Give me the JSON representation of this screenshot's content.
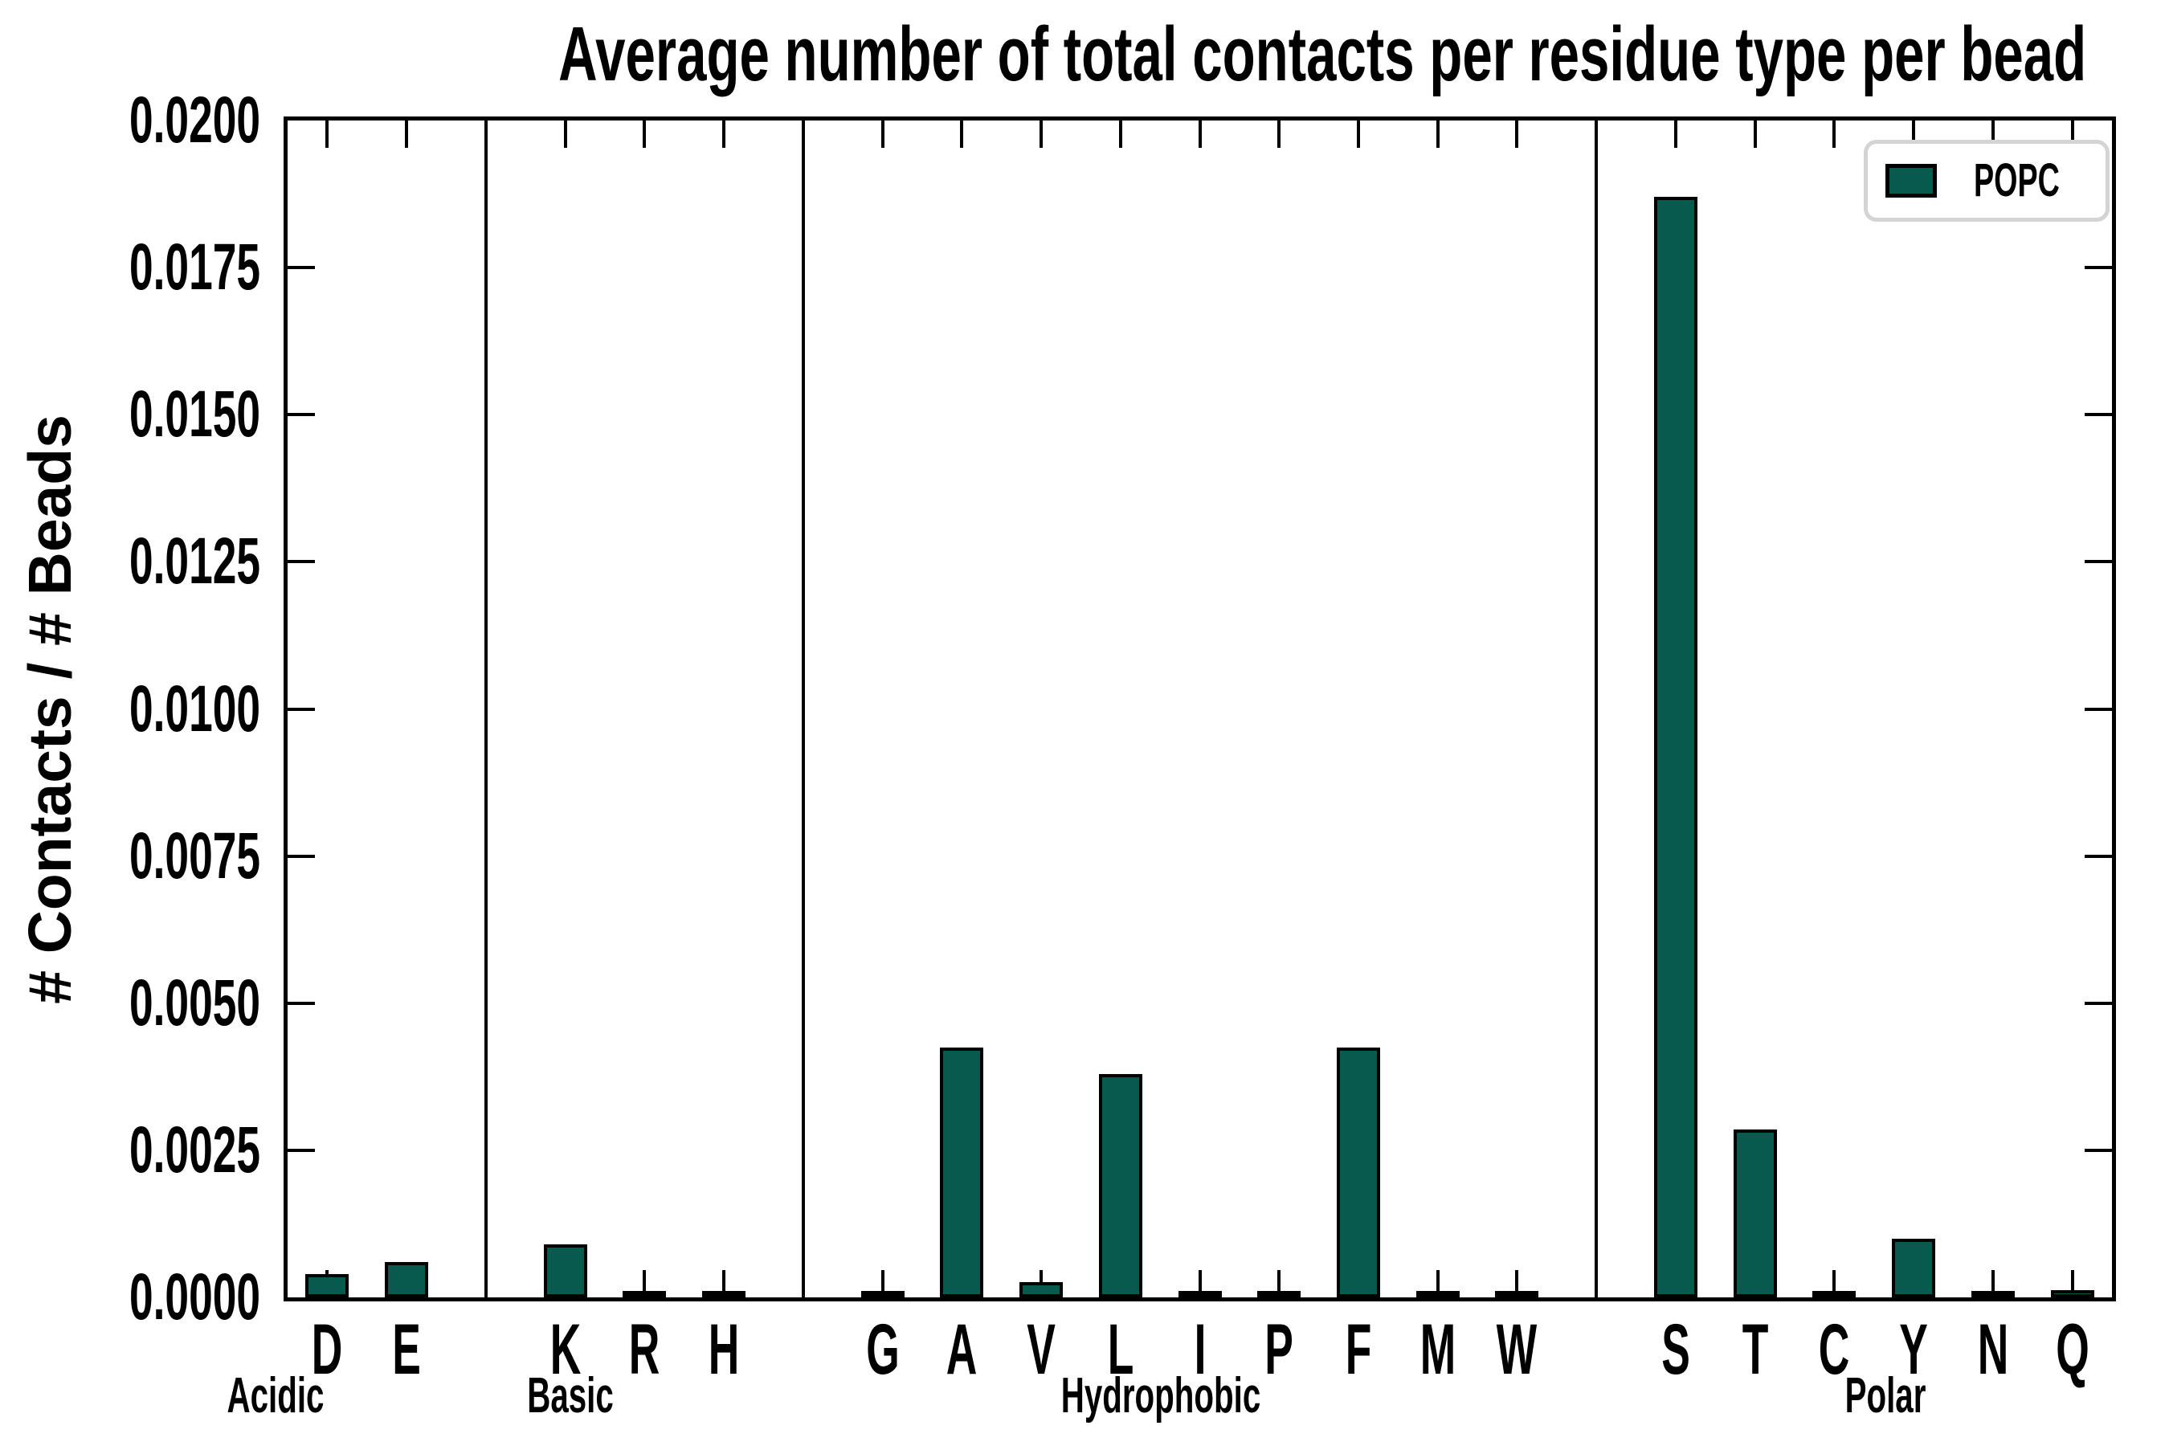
{
  "figure": {
    "title": "Average number of total contacts per residue type per bead"
  },
  "legend": {
    "label": "POPC",
    "swatch_color": "#075a4e",
    "border_color": "#d4d4d4"
  },
  "chart_data": {
    "type": "bar",
    "title": "Average number of total contacts per residue type per bead",
    "xlabel": "",
    "ylabel": "# Contacts / # Beads",
    "ylim": [
      0,
      0.02
    ],
    "ytick_step": 0.0025,
    "ytick_labels": [
      "0.0200",
      "0.0175",
      "0.0150",
      "0.0125",
      "0.0100",
      "0.0075",
      "0.0050",
      "0.0025",
      "0.0000"
    ],
    "grid": false,
    "legend_position": "upper right",
    "bar_color": "#075a4e",
    "bar_edge_color": "#000000",
    "series_name": "POPC",
    "groups": [
      {
        "name": "Acidic",
        "categories": [
          "D",
          "E"
        ],
        "values": [
          0.0004,
          0.0006
        ]
      },
      {
        "name": "Basic",
        "categories": [
          "K",
          "R",
          "H"
        ],
        "values": [
          0.0009,
          6e-05,
          6e-05
        ]
      },
      {
        "name": "Hydrophobic",
        "categories": [
          "G",
          "A",
          "V",
          "L",
          "I",
          "P",
          "F",
          "M",
          "W"
        ],
        "values": [
          8e-05,
          0.00425,
          0.00026,
          0.0038,
          5e-05,
          8e-05,
          0.00425,
          8e-05,
          4e-05
        ]
      },
      {
        "name": "Polar",
        "categories": [
          "S",
          "T",
          "C",
          "Y",
          "N",
          "Q"
        ],
        "values": [
          0.0187,
          0.00285,
          4e-05,
          0.001,
          5e-05,
          0.00012
        ]
      }
    ]
  }
}
